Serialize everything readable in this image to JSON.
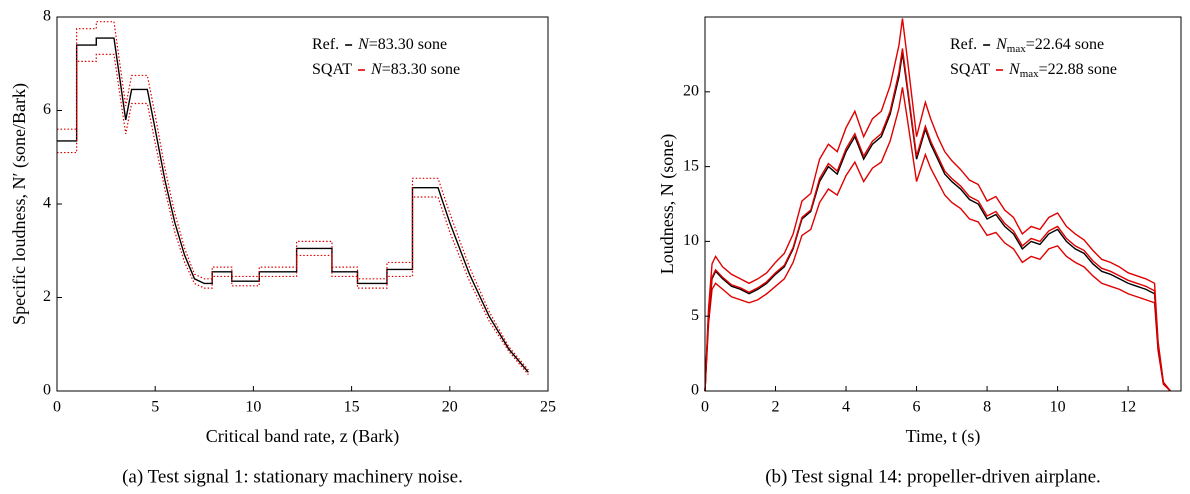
{
  "chart_data": [
    {
      "type": "line",
      "x_label": "Critical band rate, z (Bark)",
      "y_label": "Specific loudness, N′ (sone/Bark)",
      "caption": "(a) Test signal 1: stationary machinery noise.",
      "x": [
        0,
        1,
        1,
        2,
        2,
        2.9,
        3.5,
        3.8,
        4.6,
        5,
        5.5,
        6,
        6.5,
        7,
        7.5,
        7.9,
        7.9,
        8.9,
        8.9,
        10.3,
        10.3,
        12.2,
        12.2,
        14,
        14,
        15.3,
        15.3,
        16.8,
        16.8,
        18.1,
        18.1,
        19.4,
        20,
        21,
        22,
        23,
        24
      ],
      "series": [
        {
          "name": "Ref.",
          "color": "#000000",
          "style": "solid",
          "legend_symbol": "N",
          "legend_text": "=83.30 sone",
          "values": [
            5.35,
            5.35,
            7.4,
            7.4,
            7.55,
            7.55,
            5.8,
            6.45,
            6.45,
            5.6,
            4.5,
            3.6,
            2.9,
            2.4,
            2.3,
            2.3,
            2.55,
            2.55,
            2.35,
            2.35,
            2.55,
            2.55,
            3.05,
            3.05,
            2.55,
            2.55,
            2.3,
            2.3,
            2.6,
            2.6,
            4.35,
            4.35,
            3.6,
            2.5,
            1.6,
            0.9,
            0.4
          ]
        },
        {
          "name": "SQAT",
          "color": "#e00000",
          "style": "dotted",
          "legend_symbol": "N",
          "legend_text": "=83.30 sone",
          "values": [
            5.6,
            5.6,
            7.75,
            7.75,
            7.9,
            7.9,
            6.1,
            6.75,
            6.75,
            5.9,
            4.75,
            3.8,
            3.05,
            2.5,
            2.4,
            2.4,
            2.65,
            2.65,
            2.45,
            2.45,
            2.65,
            2.65,
            3.2,
            3.2,
            2.65,
            2.65,
            2.4,
            2.4,
            2.75,
            2.75,
            4.55,
            4.55,
            3.8,
            2.65,
            1.7,
            0.95,
            0.45
          ]
        },
        {
          "color": "#e00000",
          "style": "dotted",
          "values": [
            5.1,
            5.1,
            7.05,
            7.05,
            7.2,
            7.2,
            5.5,
            6.15,
            6.15,
            5.3,
            4.3,
            3.4,
            2.75,
            2.3,
            2.2,
            2.2,
            2.45,
            2.45,
            2.25,
            2.25,
            2.45,
            2.45,
            2.9,
            2.9,
            2.45,
            2.45,
            2.2,
            2.2,
            2.45,
            2.45,
            4.15,
            4.15,
            3.4,
            2.35,
            1.5,
            0.85,
            0.35
          ]
        }
      ],
      "xlim": [
        0,
        25
      ],
      "xticks": [
        0,
        5,
        10,
        15,
        20,
        25
      ],
      "ylim": [
        0,
        8
      ],
      "yticks": [
        0,
        2,
        4,
        6,
        8
      ]
    },
    {
      "type": "line",
      "x_label": "Time, t (s)",
      "y_label": "Loudness, N (sone)",
      "caption": "(b) Test signal 14: propeller-driven airplane.",
      "x": [
        0,
        0.1,
        0.2,
        0.3,
        0.5,
        0.75,
        1,
        1.25,
        1.5,
        1.75,
        2,
        2.25,
        2.5,
        2.75,
        3,
        3.25,
        3.5,
        3.75,
        4,
        4.25,
        4.5,
        4.75,
        5,
        5.25,
        5.5,
        5.6,
        5.75,
        6,
        6.25,
        6.4,
        6.6,
        6.8,
        7,
        7.25,
        7.5,
        7.75,
        8,
        8.25,
        8.5,
        8.75,
        9,
        9.25,
        9.5,
        9.75,
        10,
        10.25,
        10.5,
        10.75,
        11,
        11.25,
        11.5,
        11.75,
        12,
        12.25,
        12.5,
        12.75,
        12.85,
        13,
        13.2
      ],
      "series": [
        {
          "color": "#e00000",
          "style": "solid",
          "values": [
            0,
            5.5,
            8.5,
            9,
            8.3,
            7.8,
            7.5,
            7.2,
            7.5,
            7.9,
            8.6,
            9.2,
            10.5,
            12.7,
            13.2,
            15.5,
            16.5,
            16,
            17.6,
            18.7,
            17,
            18.2,
            18.7,
            20.4,
            23.1,
            24.9,
            22,
            17,
            19.3,
            18.2,
            17,
            16,
            15.4,
            14.8,
            14.1,
            13.8,
            12.7,
            13,
            12.1,
            11.6,
            10.5,
            11,
            10.8,
            11.6,
            11.9,
            11,
            10.5,
            10.1,
            9.4,
            8.8,
            8.6,
            8.3,
            7.9,
            7.7,
            7.5,
            7.2,
            3.3,
            0.6,
            0
          ]
        },
        {
          "color": "#e00000",
          "style": "solid",
          "values": [
            0,
            4.5,
            6.8,
            7.2,
            6.8,
            6.3,
            6.1,
            5.9,
            6.1,
            6.5,
            7,
            7.5,
            8.6,
            10.4,
            10.8,
            12.6,
            13.5,
            13.1,
            14.4,
            15.3,
            14,
            14.9,
            15.3,
            16.7,
            18.9,
            20.3,
            18,
            14,
            15.8,
            14.9,
            14,
            13.1,
            12.6,
            12.2,
            11.5,
            11.3,
            10.4,
            10.6,
            9.9,
            9.5,
            8.6,
            9,
            8.8,
            9.5,
            9.7,
            9,
            8.6,
            8.3,
            7.7,
            7.2,
            7,
            6.8,
            6.5,
            6.3,
            6.1,
            5.9,
            2.7,
            0.45,
            0
          ]
        },
        {
          "name": "Ref.",
          "color": "#000000",
          "style": "solid",
          "legend_symbol": "N",
          "legend_sub": "max",
          "legend_text": "=22.64 sone",
          "values": [
            0,
            5,
            7.5,
            8,
            7.5,
            7,
            6.8,
            6.5,
            6.8,
            7.2,
            7.8,
            8.3,
            9.5,
            11.5,
            12,
            14,
            15,
            14.5,
            16,
            17,
            15.5,
            16.5,
            17,
            18.5,
            21,
            22.6,
            20,
            15.5,
            17.5,
            16.5,
            15.5,
            14.5,
            14,
            13.5,
            12.8,
            12.5,
            11.5,
            11.8,
            11,
            10.5,
            9.5,
            10,
            9.8,
            10.5,
            10.8,
            10,
            9.5,
            9.2,
            8.5,
            8,
            7.8,
            7.5,
            7.2,
            7,
            6.8,
            6.5,
            3,
            0.5,
            0
          ]
        },
        {
          "name": "SQAT",
          "color": "#e00000",
          "style": "solid",
          "legend_symbol": "N",
          "legend_sub": "max",
          "legend_text": "=22.88 sone",
          "values": [
            0,
            5.1,
            7.6,
            8.1,
            7.6,
            7.1,
            6.9,
            6.6,
            6.9,
            7.3,
            7.9,
            8.4,
            9.6,
            11.6,
            12.1,
            14.2,
            15.2,
            14.7,
            16.2,
            17.2,
            15.7,
            16.7,
            17.2,
            18.7,
            21.3,
            22.9,
            20.2,
            15.7,
            17.7,
            16.7,
            15.7,
            14.7,
            14.2,
            13.7,
            13,
            12.7,
            11.7,
            12,
            11.2,
            10.7,
            9.7,
            10.2,
            10,
            10.7,
            11,
            10.2,
            9.7,
            9.4,
            8.7,
            8.2,
            8,
            7.7,
            7.4,
            7.2,
            7,
            6.7,
            3.1,
            0.5,
            0
          ]
        }
      ],
      "xlim": [
        0,
        13.5
      ],
      "xticks": [
        0,
        2,
        4,
        6,
        8,
        10,
        12
      ],
      "ylim": [
        0,
        25
      ],
      "yticks": [
        0,
        5,
        10,
        15,
        20
      ]
    }
  ]
}
